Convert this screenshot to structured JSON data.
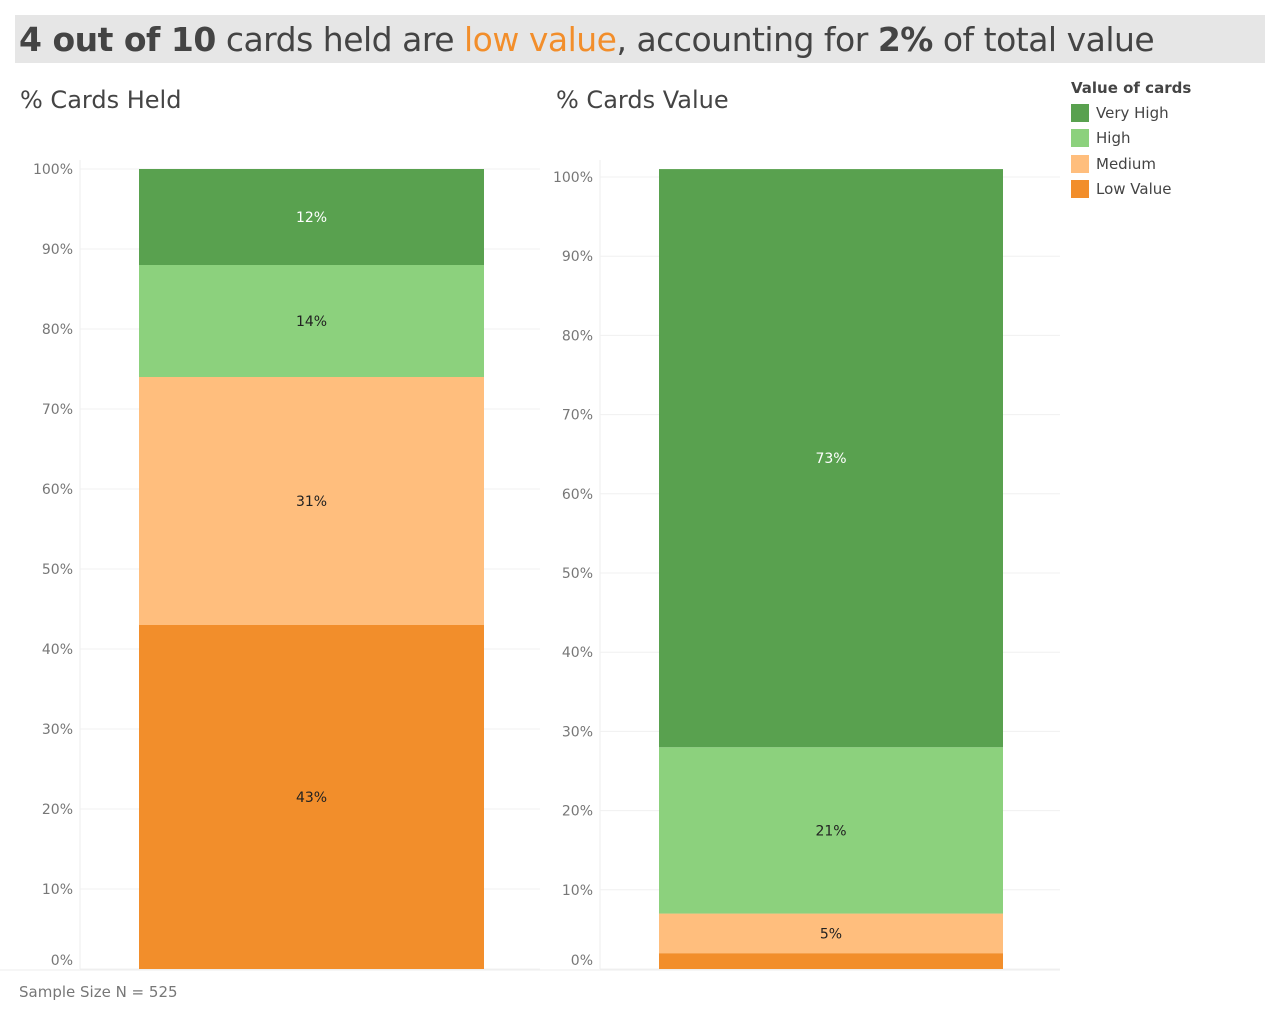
{
  "title": {
    "p1": "4 out of 10",
    "p2": " cards held are ",
    "p3": "low value",
    "p4": ", accounting for ",
    "p5": "2%",
    "p6": " of total value"
  },
  "colors": {
    "Very High": "#59a14f",
    "High": "#8cd17d",
    "Medium": "#ffbe7d",
    "Low Value": "#f28e2b",
    "accent": "#f28e2b"
  },
  "legend": {
    "title": "Value of cards",
    "items": [
      "Very High",
      "High",
      "Medium",
      "Low Value"
    ]
  },
  "note": "Sample Size N = 525",
  "chart_data": [
    {
      "type": "bar",
      "stacked": true,
      "title": "% Cards Held",
      "ylim": [
        0,
        100
      ],
      "yticks": [
        "0%",
        "10%",
        "20%",
        "30%",
        "40%",
        "50%",
        "60%",
        "70%",
        "80%",
        "90%",
        "100%"
      ],
      "grid": true,
      "series": [
        {
          "name": "Low Value",
          "value": 43,
          "label": "43%"
        },
        {
          "name": "Medium",
          "value": 31,
          "label": "31%"
        },
        {
          "name": "High",
          "value": 14,
          "label": "14%"
        },
        {
          "name": "Very High",
          "value": 12,
          "label": "12%"
        }
      ]
    },
    {
      "type": "bar",
      "stacked": true,
      "title": "% Cards Value",
      "ylim": [
        0,
        101
      ],
      "yticks": [
        "0%",
        "10%",
        "20%",
        "30%",
        "40%",
        "50%",
        "60%",
        "70%",
        "80%",
        "90%",
        "100%"
      ],
      "grid": true,
      "series": [
        {
          "name": "Low Value",
          "value": 2,
          "label": ""
        },
        {
          "name": "Medium",
          "value": 5,
          "label": "5%"
        },
        {
          "name": "High",
          "value": 21,
          "label": "21%"
        },
        {
          "name": "Very High",
          "value": 73,
          "label": "73%"
        }
      ]
    }
  ]
}
